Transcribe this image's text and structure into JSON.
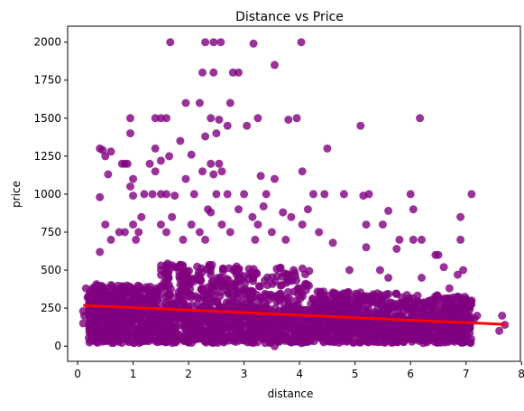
{
  "chart_data": {
    "type": "scatter",
    "title": "Distance vs Price",
    "xlabel": "distance",
    "ylabel": "price",
    "xlim": [
      -0.18,
      7.98
    ],
    "ylim": [
      -100,
      2105
    ],
    "x_ticks": [
      0,
      1,
      2,
      3,
      4,
      5,
      6,
      7,
      8
    ],
    "y_ticks": [
      0,
      250,
      500,
      750,
      1000,
      1250,
      1500,
      1750,
      2000
    ],
    "grid": false,
    "point_color": "#800080",
    "regression_color": "#ff0000",
    "regression_line": {
      "x": [
        0.1,
        7.7
      ],
      "y": [
        268,
        143
      ]
    },
    "series": [
      {
        "values": [
          [
            1.67,
            2000
          ],
          [
            2.3,
            2000
          ],
          [
            2.45,
            2000
          ],
          [
            2.58,
            2000
          ],
          [
            3.17,
            1990
          ],
          [
            4.03,
            2000
          ],
          [
            3.55,
            1850
          ],
          [
            2.25,
            1800
          ],
          [
            2.45,
            1800
          ],
          [
            2.8,
            1800
          ],
          [
            2.9,
            1800
          ],
          [
            1.95,
            1600
          ],
          [
            2.2,
            1600
          ],
          [
            2.75,
            1600
          ],
          [
            6.17,
            1500
          ],
          [
            0.95,
            1500
          ],
          [
            1.4,
            1500
          ],
          [
            1.5,
            1500
          ],
          [
            1.6,
            1500
          ],
          [
            2.4,
            1500
          ],
          [
            2.55,
            1490
          ],
          [
            3.25,
            1500
          ],
          [
            3.8,
            1490
          ],
          [
            3.95,
            1500
          ],
          [
            2.7,
            1450
          ],
          [
            3.05,
            1450
          ],
          [
            5.1,
            1450
          ],
          [
            2.5,
            1400
          ],
          [
            0.95,
            1400
          ],
          [
            2.3,
            1380
          ],
          [
            1.85,
            1350
          ],
          [
            1.4,
            1300
          ],
          [
            4.5,
            1300
          ],
          [
            0.4,
            1300
          ],
          [
            0.45,
            1290
          ],
          [
            0.6,
            1280
          ],
          [
            0.5,
            1250
          ],
          [
            1.65,
            1250
          ],
          [
            2.05,
            1260
          ],
          [
            1.5,
            1220
          ],
          [
            0.8,
            1200
          ],
          [
            0.85,
            1200
          ],
          [
            0.9,
            1200
          ],
          [
            1.3,
            1200
          ],
          [
            2.4,
            1200
          ],
          [
            2.55,
            1200
          ],
          [
            1.4,
            1150
          ],
          [
            2.6,
            1150
          ],
          [
            0.55,
            1130
          ],
          [
            1.0,
            1100
          ],
          [
            1.95,
            1100
          ],
          [
            2.25,
            1150
          ],
          [
            2.45,
            1130
          ],
          [
            3.3,
            1120
          ],
          [
            3.55,
            1100
          ],
          [
            4.05,
            1150
          ],
          [
            0.95,
            1050
          ],
          [
            1.2,
            1000
          ],
          [
            1.35,
            1000
          ],
          [
            1.5,
            1000
          ],
          [
            1.6,
            1000
          ],
          [
            1.75,
            990
          ],
          [
            2.1,
            1000
          ],
          [
            2.5,
            1000
          ],
          [
            2.7,
            1000
          ],
          [
            3.0,
            1000
          ],
          [
            3.4,
            1000
          ],
          [
            4.25,
            1000
          ],
          [
            4.45,
            1000
          ],
          [
            4.8,
            1000
          ],
          [
            5.25,
            1000
          ],
          [
            6.0,
            1000
          ],
          [
            7.1,
            1000
          ],
          [
            0.4,
            980
          ],
          [
            1.0,
            990
          ],
          [
            5.15,
            990
          ],
          [
            2.35,
            900
          ],
          [
            2.9,
            900
          ],
          [
            3.35,
            920
          ],
          [
            3.7,
            880
          ],
          [
            4.15,
            900
          ],
          [
            5.6,
            890
          ],
          [
            6.05,
            900
          ],
          [
            1.15,
            850
          ],
          [
            1.7,
            850
          ],
          [
            2.4,
            880
          ],
          [
            3.15,
            850
          ],
          [
            3.85,
            850
          ],
          [
            6.9,
            850
          ],
          [
            0.5,
            800
          ],
          [
            1.0,
            800
          ],
          [
            1.5,
            800
          ],
          [
            2.05,
            800
          ],
          [
            2.6,
            800
          ],
          [
            3.25,
            800
          ],
          [
            4.05,
            800
          ],
          [
            5.2,
            800
          ],
          [
            5.5,
            800
          ],
          [
            0.75,
            750
          ],
          [
            0.85,
            750
          ],
          [
            1.1,
            750
          ],
          [
            1.6,
            750
          ],
          [
            2.2,
            750
          ],
          [
            2.75,
            750
          ],
          [
            3.5,
            750
          ],
          [
            4.35,
            750
          ],
          [
            6.05,
            700
          ],
          [
            6.2,
            700
          ],
          [
            6.9,
            700
          ],
          [
            5.8,
            700
          ],
          [
            0.6,
            700
          ],
          [
            1.05,
            700
          ],
          [
            1.9,
            700
          ],
          [
            2.3,
            700
          ],
          [
            3.2,
            700
          ],
          [
            3.75,
            700
          ],
          [
            4.6,
            680
          ],
          [
            0.4,
            620
          ],
          [
            5.2,
            650
          ],
          [
            5.75,
            640
          ],
          [
            6.45,
            600
          ],
          [
            6.5,
            600
          ],
          [
            6.6,
            520
          ],
          [
            6.95,
            500
          ],
          [
            6.85,
            470
          ],
          [
            4.9,
            500
          ],
          [
            5.45,
            500
          ],
          [
            5.6,
            450
          ],
          [
            6.2,
            450
          ],
          [
            7.1,
            300
          ],
          [
            7.2,
            200
          ],
          [
            7.6,
            100
          ],
          [
            7.65,
            200
          ],
          [
            7.7,
            140
          ],
          [
            7.05,
            120
          ],
          [
            7.15,
            180
          ],
          [
            6.7,
            380
          ],
          [
            6.8,
            250
          ],
          [
            6.75,
            180
          ],
          [
            6.9,
            120
          ],
          [
            3.55,
            0
          ],
          [
            0.25,
            50
          ],
          [
            0.3,
            80
          ],
          [
            0.1,
            150
          ],
          [
            0.12,
            200
          ],
          [
            0.15,
            380
          ],
          [
            0.1,
            230
          ],
          [
            0.2,
            270
          ],
          [
            0.18,
            320
          ],
          [
            0.25,
            200
          ],
          [
            0.35,
            100
          ]
        ]
      }
    ],
    "dense_band": {
      "x_range": [
        0.2,
        7.1
      ],
      "y_center": [
        230,
        150
      ],
      "note_points": 2600
    }
  }
}
